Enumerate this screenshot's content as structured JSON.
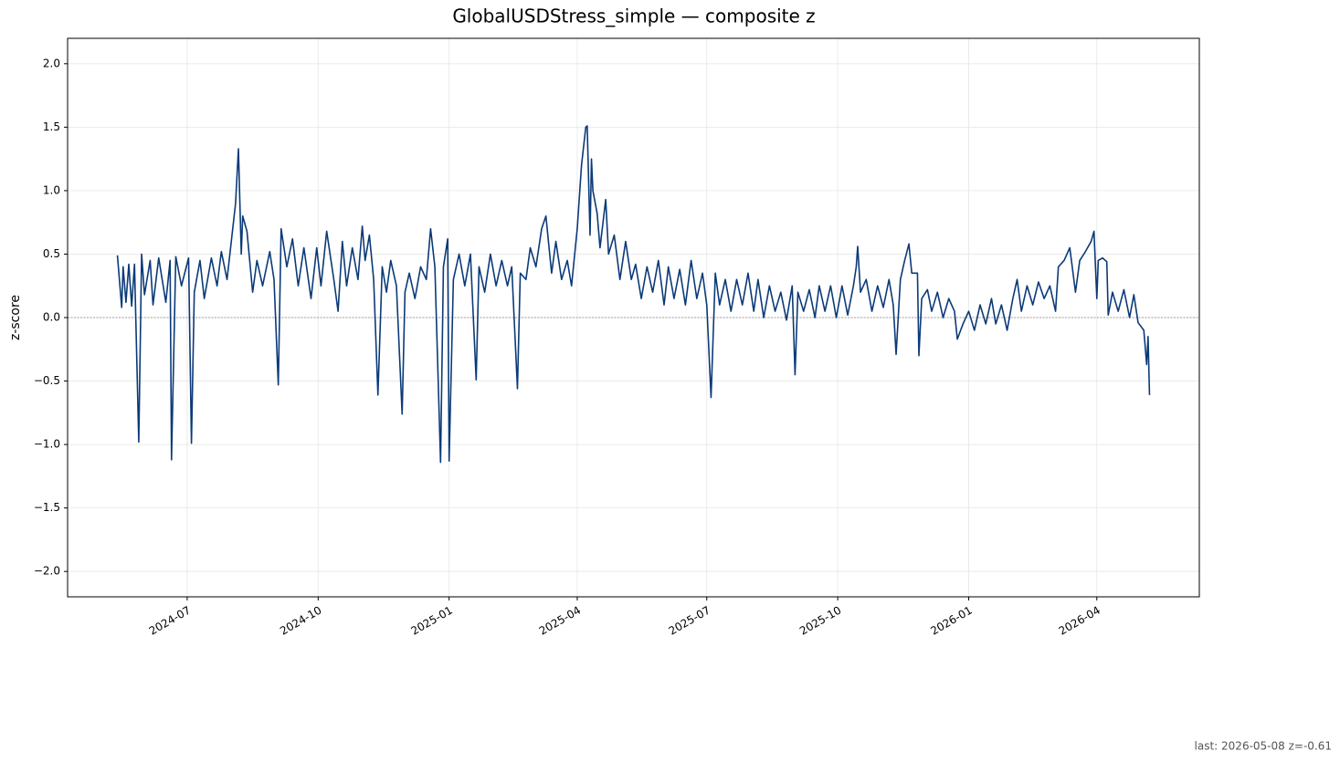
{
  "chart_data": {
    "type": "line",
    "title": "GlobalUSDStress_simple — composite z",
    "y_label": "z-score",
    "annotation": "last: 2026-05-08 z=-0.61",
    "xlim": [
      "2024-04-08",
      "2026-06-12"
    ],
    "ylim": [
      -2.2,
      2.2
    ],
    "xticks": [
      "2024-07",
      "2024-10",
      "2025-01",
      "2025-04",
      "2025-07",
      "2025-10",
      "2026-01",
      "2026-04"
    ],
    "yticks": [
      {
        "value": -2,
        "label": "−2.0"
      },
      {
        "value": -1.5,
        "label": "−1.5"
      },
      {
        "value": -1,
        "label": "−1.0"
      },
      {
        "value": -0.5,
        "label": "−0.5"
      },
      {
        "value": 0,
        "label": "0.0"
      },
      {
        "value": 0.5,
        "label": "0.5"
      },
      {
        "value": 1,
        "label": "1.0"
      },
      {
        "value": 1.5,
        "label": "1.5"
      },
      {
        "value": 2,
        "label": "2.0"
      }
    ],
    "grid": true,
    "reference_line": 0,
    "x": [
      "2024-05-13",
      "2024-05-16",
      "2024-05-17",
      "2024-05-19",
      "2024-05-21",
      "2024-05-23",
      "2024-05-25",
      "2024-05-28",
      "2024-05-30",
      "2024-06-01",
      "2024-06-05",
      "2024-06-07",
      "2024-06-11",
      "2024-06-16",
      "2024-06-19",
      "2024-06-20",
      "2024-06-23",
      "2024-06-27",
      "2024-07-02",
      "2024-07-04",
      "2024-07-06",
      "2024-07-10",
      "2024-07-13",
      "2024-07-18",
      "2024-07-22",
      "2024-07-25",
      "2024-07-29",
      "2024-08-01",
      "2024-08-04",
      "2024-08-06",
      "2024-08-08",
      "2024-08-09",
      "2024-08-12",
      "2024-08-16",
      "2024-08-19",
      "2024-08-23",
      "2024-08-28",
      "2024-08-31",
      "2024-09-03",
      "2024-09-05",
      "2024-09-09",
      "2024-09-13",
      "2024-09-17",
      "2024-09-21",
      "2024-09-26",
      "2024-09-30",
      "2024-10-03",
      "2024-10-07",
      "2024-10-12",
      "2024-10-15",
      "2024-10-18",
      "2024-10-21",
      "2024-10-25",
      "2024-10-29",
      "2024-11-01",
      "2024-11-03",
      "2024-11-06",
      "2024-11-09",
      "2024-11-12",
      "2024-11-15",
      "2024-11-18",
      "2024-11-21",
      "2024-11-25",
      "2024-11-29",
      "2024-12-01",
      "2024-12-04",
      "2024-12-08",
      "2024-12-12",
      "2024-12-16",
      "2024-12-19",
      "2024-12-22",
      "2024-12-26",
      "2024-12-28",
      "2024-12-31",
      "2025-01-01",
      "2025-01-04",
      "2025-01-08",
      "2025-01-12",
      "2025-01-16",
      "2025-01-20",
      "2025-01-22",
      "2025-01-26",
      "2025-01-30",
      "2025-02-03",
      "2025-02-07",
      "2025-02-11",
      "2025-02-14",
      "2025-02-18",
      "2025-02-20",
      "2025-02-24",
      "2025-02-27",
      "2025-03-03",
      "2025-03-07",
      "2025-03-10",
      "2025-03-14",
      "2025-03-17",
      "2025-03-21",
      "2025-03-25",
      "2025-03-28",
      "2025-04-01",
      "2025-04-04",
      "2025-04-07",
      "2025-04-08",
      "2025-04-10",
      "2025-04-11",
      "2025-04-12",
      "2025-04-15",
      "2025-04-17",
      "2025-04-21",
      "2025-04-23",
      "2025-04-27",
      "2025-05-01",
      "2025-05-05",
      "2025-05-09",
      "2025-05-12",
      "2025-05-16",
      "2025-05-20",
      "2025-05-24",
      "2025-05-28",
      "2025-06-01",
      "2025-06-04",
      "2025-06-08",
      "2025-06-12",
      "2025-06-16",
      "2025-06-20",
      "2025-06-24",
      "2025-06-28",
      "2025-07-01",
      "2025-07-04",
      "2025-07-07",
      "2025-07-10",
      "2025-07-14",
      "2025-07-18",
      "2025-07-22",
      "2025-07-26",
      "2025-07-30",
      "2025-08-03",
      "2025-08-06",
      "2025-08-10",
      "2025-08-14",
      "2025-08-18",
      "2025-08-22",
      "2025-08-26",
      "2025-08-30",
      "2025-09-01",
      "2025-09-03",
      "2025-09-07",
      "2025-09-11",
      "2025-09-15",
      "2025-09-18",
      "2025-09-22",
      "2025-09-26",
      "2025-09-30",
      "2025-10-04",
      "2025-10-08",
      "2025-10-12",
      "2025-10-14",
      "2025-10-15",
      "2025-10-17",
      "2025-10-21",
      "2025-10-25",
      "2025-10-29",
      "2025-11-02",
      "2025-11-06",
      "2025-11-09",
      "2025-11-11",
      "2025-11-14",
      "2025-11-17",
      "2025-11-20",
      "2025-11-22",
      "2025-11-26",
      "2025-11-27",
      "2025-11-29",
      "2025-12-03",
      "2025-12-06",
      "2025-12-10",
      "2025-12-14",
      "2025-12-18",
      "2025-12-22",
      "2025-12-24",
      "2025-12-28",
      "2026-01-01",
      "2026-01-05",
      "2026-01-09",
      "2026-01-13",
      "2026-01-17",
      "2026-01-20",
      "2026-01-24",
      "2026-01-28",
      "2026-02-01",
      "2026-02-04",
      "2026-02-07",
      "2026-02-11",
      "2026-02-15",
      "2026-02-19",
      "2026-02-23",
      "2026-02-27",
      "2026-03-03",
      "2026-03-05",
      "2026-03-09",
      "2026-03-13",
      "2026-03-17",
      "2026-03-20",
      "2026-03-24",
      "2026-03-28",
      "2026-03-30",
      "2026-04-01",
      "2026-04-02",
      "2026-04-05",
      "2026-04-08",
      "2026-04-09",
      "2026-04-12",
      "2026-04-16",
      "2026-04-20",
      "2026-04-24",
      "2026-04-27",
      "2026-04-30",
      "2026-05-04",
      "2026-05-06",
      "2026-05-07",
      "2026-05-08"
    ],
    "series": [
      {
        "color": "#0b3a78",
        "values": [
          0.49,
          0.08,
          0.4,
          0.12,
          0.42,
          0.09,
          0.42,
          -0.98,
          0.5,
          0.18,
          0.45,
          0.1,
          0.47,
          0.12,
          0.45,
          -1.12,
          0.48,
          0.25,
          0.47,
          -0.99,
          0.2,
          0.45,
          0.15,
          0.47,
          0.25,
          0.52,
          0.3,
          0.6,
          0.9,
          1.33,
          0.5,
          0.8,
          0.68,
          0.2,
          0.45,
          0.25,
          0.52,
          0.3,
          -0.53,
          0.7,
          0.4,
          0.62,
          0.25,
          0.55,
          0.15,
          0.55,
          0.25,
          0.68,
          0.3,
          0.05,
          0.6,
          0.25,
          0.55,
          0.3,
          0.72,
          0.45,
          0.65,
          0.3,
          -0.61,
          0.4,
          0.2,
          0.45,
          0.25,
          -0.76,
          0.2,
          0.35,
          0.15,
          0.4,
          0.3,
          0.7,
          0.4,
          -1.14,
          0.4,
          0.62,
          -1.13,
          0.3,
          0.5,
          0.25,
          0.5,
          -0.49,
          0.4,
          0.2,
          0.5,
          0.25,
          0.45,
          0.25,
          0.4,
          -0.56,
          0.35,
          0.3,
          0.55,
          0.4,
          0.7,
          0.8,
          0.35,
          0.6,
          0.3,
          0.45,
          0.25,
          0.7,
          1.2,
          1.5,
          1.51,
          0.65,
          1.25,
          1.0,
          0.82,
          0.55,
          0.93,
          0.5,
          0.65,
          0.3,
          0.6,
          0.3,
          0.42,
          0.15,
          0.4,
          0.2,
          0.45,
          0.1,
          0.4,
          0.15,
          0.38,
          0.1,
          0.45,
          0.15,
          0.35,
          0.1,
          -0.63,
          0.35,
          0.1,
          0.3,
          0.05,
          0.3,
          0.1,
          0.35,
          0.05,
          0.3,
          0.0,
          0.25,
          0.05,
          0.2,
          -0.02,
          0.25,
          -0.45,
          0.2,
          0.05,
          0.22,
          0.0,
          0.25,
          0.05,
          0.25,
          0.0,
          0.25,
          0.02,
          0.25,
          0.4,
          0.56,
          0.2,
          0.3,
          0.05,
          0.25,
          0.08,
          0.3,
          0.1,
          -0.29,
          0.3,
          0.45,
          0.58,
          0.35,
          0.35,
          -0.3,
          0.15,
          0.22,
          0.05,
          0.2,
          0.0,
          0.15,
          0.05,
          -0.17,
          -0.05,
          0.05,
          -0.1,
          0.1,
          -0.05,
          0.15,
          -0.05,
          0.1,
          -0.1,
          0.15,
          0.3,
          0.05,
          0.25,
          0.1,
          0.28,
          0.15,
          0.25,
          0.05,
          0.4,
          0.45,
          0.55,
          0.2,
          0.45,
          0.52,
          0.6,
          0.68,
          0.15,
          0.45,
          0.47,
          0.44,
          0.02,
          0.2,
          0.05,
          0.22,
          0.0,
          0.18,
          -0.04,
          -0.1,
          -0.37,
          -0.15,
          -0.61
        ]
      }
    ]
  }
}
